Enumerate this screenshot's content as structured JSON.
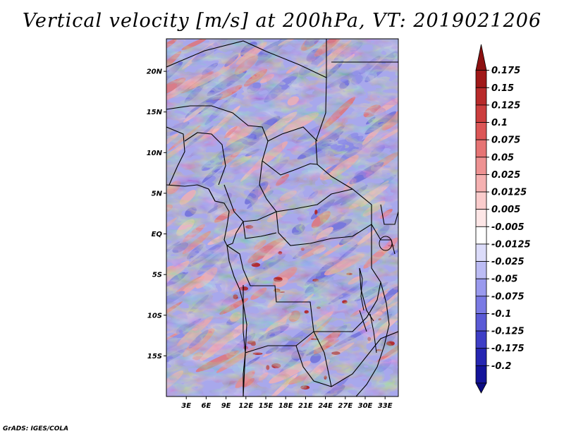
{
  "title": "Vertical velocity [m/s] at 200hPa, VT: 2019021206",
  "credit": "GrADS: IGES/COLA",
  "map": {
    "variable": "Vertical velocity",
    "units": "m/s",
    "level": "200hPa",
    "valid_time": "2019021206",
    "lon_range": [
      0,
      35
    ],
    "lat_range": [
      -20,
      24
    ],
    "lon_ticks": [
      {
        "value": 3,
        "label": "3E"
      },
      {
        "value": 6,
        "label": "6E"
      },
      {
        "value": 9,
        "label": "9E"
      },
      {
        "value": 12,
        "label": "12E"
      },
      {
        "value": 15,
        "label": "15E"
      },
      {
        "value": 18,
        "label": "18E"
      },
      {
        "value": 21,
        "label": "21E"
      },
      {
        "value": 24,
        "label": "24E"
      },
      {
        "value": 27,
        "label": "27E"
      },
      {
        "value": 30,
        "label": "30E"
      },
      {
        "value": 33,
        "label": "33E"
      }
    ],
    "lat_ticks": [
      {
        "value": 20,
        "label": "20N"
      },
      {
        "value": 15,
        "label": "15N"
      },
      {
        "value": 10,
        "label": "10N"
      },
      {
        "value": 5,
        "label": "5N"
      },
      {
        "value": 0,
        "label": "EQ"
      },
      {
        "value": -5,
        "label": "5S"
      },
      {
        "value": -10,
        "label": "10S"
      },
      {
        "value": -15,
        "label": "15S"
      }
    ]
  },
  "colorbar": {
    "levels": [
      {
        "label": "0.175",
        "color": "#a01818"
      },
      {
        "label": "0.15",
        "color": "#b82a2a"
      },
      {
        "label": "0.125",
        "color": "#cc3e3e"
      },
      {
        "label": "0.1",
        "color": "#dc5656"
      },
      {
        "label": "0.075",
        "color": "#e67474"
      },
      {
        "label": "0.05",
        "color": "#ee9292"
      },
      {
        "label": "0.025",
        "color": "#f5b1b1"
      },
      {
        "label": "0.0125",
        "color": "#facccc"
      },
      {
        "label": "0.005",
        "color": "#fde6e6"
      },
      {
        "label": "-0.005",
        "color": "#ffffff"
      },
      {
        "label": "-0.0125",
        "color": "#dcdcfa"
      },
      {
        "label": "-0.025",
        "color": "#bcbcf4"
      },
      {
        "label": "-0.05",
        "color": "#9a9aee"
      },
      {
        "label": "-0.075",
        "color": "#7a7ae4"
      },
      {
        "label": "-0.1",
        "color": "#5a5ad6"
      },
      {
        "label": "-0.125",
        "color": "#3e3ec6"
      },
      {
        "label": "-0.175",
        "color": "#2626b2"
      },
      {
        "label": "-0.2",
        "color": "#14149a"
      }
    ],
    "top_color": "#8c1010",
    "bottom_color": "#0c0c82"
  }
}
